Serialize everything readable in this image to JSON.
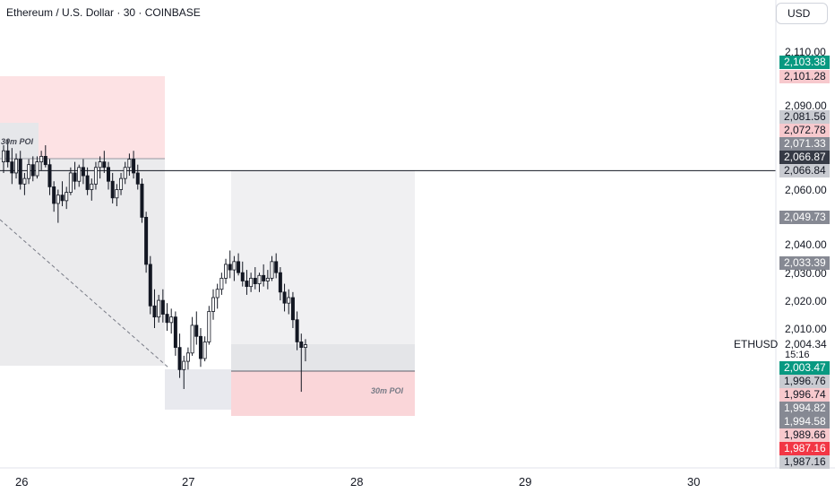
{
  "header": {
    "title": "Ethereum / U.S. Dollar · 30 · COINBASE",
    "currency_button": "USD"
  },
  "symbol_label": "ETHUSD",
  "last_price": "2,004.34",
  "countdown": "15:16",
  "annotations": {
    "poi_top": "30m POI",
    "poi_bottom": "30m POI"
  },
  "price_ticks": [
    "2,110.00",
    "2,090.00",
    "2,060.00",
    "2,040.00",
    "2,030.00",
    "2,020.00",
    "2,010.00"
  ],
  "price_tags": [
    {
      "label": "2,103.38",
      "bg": "#089981",
      "fg": "#ffffff"
    },
    {
      "label": "2,101.28",
      "bg": "#f7c9cd",
      "fg": "#131722"
    },
    {
      "label": "2,081.56",
      "bg": "#c9cbd1",
      "fg": "#131722"
    },
    {
      "label": "2,072.78",
      "bg": "#f7c9cd",
      "fg": "#131722"
    },
    {
      "label": "2,071.33",
      "bg": "#868993",
      "fg": "#ffffff"
    },
    {
      "label": "2,066.87",
      "bg": "#363a45",
      "fg": "#ffffff"
    },
    {
      "label": "2,066.84",
      "bg": "#c9cbd1",
      "fg": "#131722"
    },
    {
      "label": "2,049.73",
      "bg": "#868993",
      "fg": "#ffffff"
    },
    {
      "label": "2,033.39",
      "bg": "#868993",
      "fg": "#ffffff"
    },
    {
      "label": "2,003.47",
      "bg": "#089981",
      "fg": "#ffffff"
    },
    {
      "label": "1,996.76",
      "bg": "#c9cbd1",
      "fg": "#131722"
    },
    {
      "label": "1,996.74",
      "bg": "#f7c9cd",
      "fg": "#131722"
    },
    {
      "label": "1,994.82",
      "bg": "#868993",
      "fg": "#ffffff"
    },
    {
      "label": "1,994.58",
      "bg": "#868993",
      "fg": "#ffffff"
    },
    {
      "label": "1,989.66",
      "bg": "#f7c9cd",
      "fg": "#131722"
    },
    {
      "label": "1,987.16",
      "bg": "#f23645",
      "fg": "#ffffff"
    },
    {
      "label": "1,987.16",
      "bg": "#c9cbd1",
      "fg": "#131722"
    }
  ],
  "chart_data": {
    "type": "candlestick",
    "x_ticks": [
      "26",
      "27",
      "28",
      "29",
      "30"
    ],
    "hline": 2066.84,
    "colors": {
      "up": "#131722",
      "down": "#131722"
    },
    "candles": [
      [
        2070,
        2076,
        2066,
        2074
      ],
      [
        2074,
        2078,
        2068,
        2070
      ],
      [
        2070,
        2075,
        2062,
        2066
      ],
      [
        2066,
        2073,
        2064,
        2071
      ],
      [
        2071,
        2074,
        2060,
        2062
      ],
      [
        2062,
        2066,
        2058,
        2064
      ],
      [
        2064,
        2071,
        2062,
        2069
      ],
      [
        2069,
        2072,
        2063,
        2065
      ],
      [
        2065,
        2072,
        2064,
        2070
      ],
      [
        2070,
        2074,
        2067,
        2072
      ],
      [
        2072,
        2076,
        2068,
        2069
      ],
      [
        2069,
        2071,
        2058,
        2061
      ],
      [
        2061,
        2063,
        2052,
        2055
      ],
      [
        2055,
        2060,
        2048,
        2058
      ],
      [
        2058,
        2063,
        2054,
        2056
      ],
      [
        2056,
        2061,
        2053,
        2059
      ],
      [
        2059,
        2068,
        2058,
        2066
      ],
      [
        2066,
        2070,
        2060,
        2063
      ],
      [
        2063,
        2069,
        2061,
        2068
      ],
      [
        2068,
        2071,
        2062,
        2065
      ],
      [
        2065,
        2068,
        2058,
        2060
      ],
      [
        2060,
        2064,
        2056,
        2062
      ],
      [
        2062,
        2070,
        2060,
        2068
      ],
      [
        2068,
        2072,
        2064,
        2070
      ],
      [
        2070,
        2074,
        2066,
        2068
      ],
      [
        2068,
        2070,
        2060,
        2063
      ],
      [
        2063,
        2066,
        2055,
        2057
      ],
      [
        2057,
        2062,
        2054,
        2060
      ],
      [
        2060,
        2066,
        2058,
        2064
      ],
      [
        2064,
        2070,
        2062,
        2068
      ],
      [
        2068,
        2073,
        2065,
        2071
      ],
      [
        2071,
        2074,
        2064,
        2066
      ],
      [
        2066,
        2069,
        2060,
        2062
      ],
      [
        2062,
        2064,
        2048,
        2050
      ],
      [
        2050,
        2052,
        2030,
        2033
      ],
      [
        2033,
        2036,
        2015,
        2018
      ],
      [
        2018,
        2024,
        2010,
        2014
      ],
      [
        2014,
        2022,
        2012,
        2020
      ],
      [
        2020,
        2024,
        2012,
        2015
      ],
      [
        2015,
        2019,
        2009,
        2012
      ],
      [
        2012,
        2017,
        2008,
        2014
      ],
      [
        2014,
        2016,
        2000,
        2003
      ],
      [
        2003,
        2008,
        1992,
        1995
      ],
      [
        1995,
        2000,
        1988,
        1998
      ],
      [
        1998,
        2003,
        1995,
        2001
      ],
      [
        2001,
        2014,
        2000,
        2011
      ],
      [
        2011,
        2016,
        2004,
        2007
      ],
      [
        2007,
        2010,
        1996,
        1999
      ],
      [
        1999,
        2007,
        1998,
        2005
      ],
      [
        2005,
        2018,
        2004,
        2016
      ],
      [
        2016,
        2024,
        2013,
        2021
      ],
      [
        2021,
        2026,
        2017,
        2024
      ],
      [
        2024,
        2030,
        2022,
        2028
      ],
      [
        2028,
        2035,
        2026,
        2033
      ],
      [
        2033,
        2038,
        2028,
        2031
      ],
      [
        2031,
        2036,
        2027,
        2034
      ],
      [
        2034,
        2037,
        2029,
        2030
      ],
      [
        2030,
        2034,
        2025,
        2027
      ],
      [
        2027,
        2031,
        2022,
        2025
      ],
      [
        2025,
        2030,
        2023,
        2028
      ],
      [
        2028,
        2032,
        2024,
        2026
      ],
      [
        2026,
        2030,
        2023,
        2029
      ],
      [
        2029,
        2033,
        2025,
        2027
      ],
      [
        2027,
        2031,
        2024,
        2028
      ],
      [
        2028,
        2036,
        2027,
        2034
      ],
      [
        2034,
        2037,
        2028,
        2030
      ],
      [
        2030,
        2032,
        2020,
        2023
      ],
      [
        2023,
        2026,
        2016,
        2019
      ],
      [
        2019,
        2024,
        2015,
        2021
      ],
      [
        2021,
        2023,
        2010,
        2013
      ],
      [
        2013,
        2016,
        2002,
        2005
      ],
      [
        2005,
        2008,
        1987,
        2003
      ],
      [
        2003,
        2006,
        1998,
        2004
      ]
    ]
  }
}
